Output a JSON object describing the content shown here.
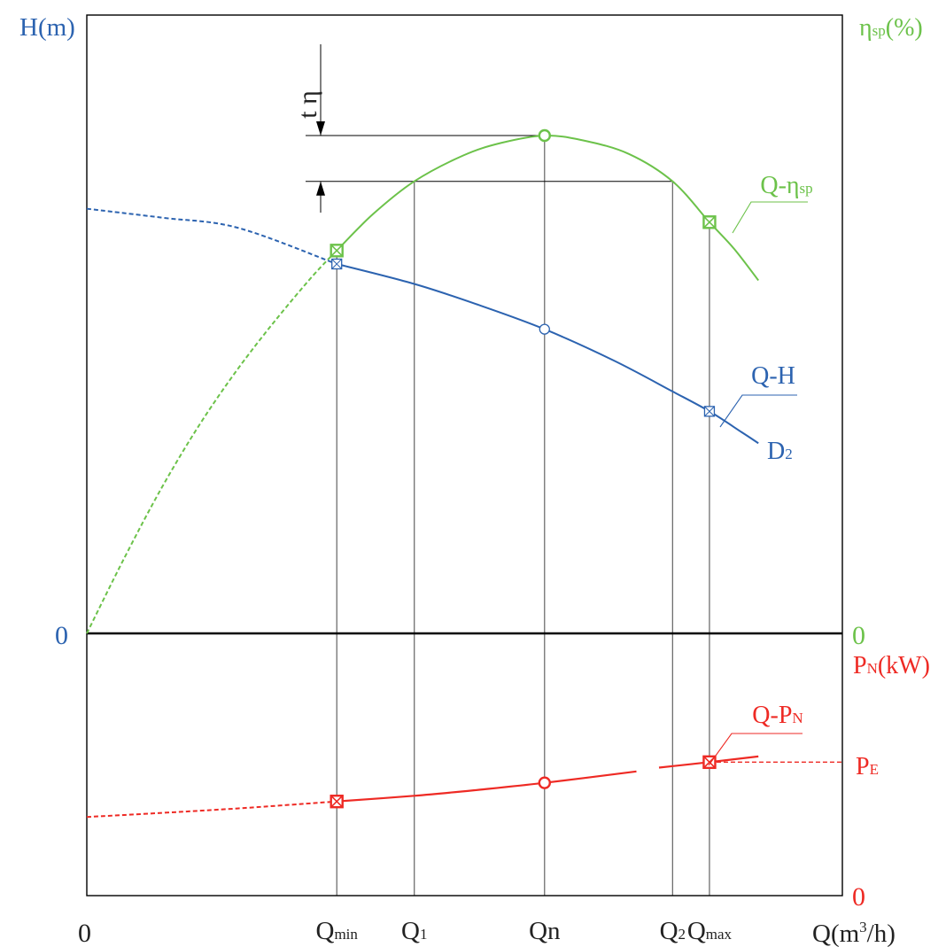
{
  "chart_data": {
    "type": "line",
    "colors": {
      "head": "#2c63b0",
      "efficiency": "#6cc24a",
      "power": "#ee2a24",
      "axis": "#000000",
      "guide": "#555555"
    },
    "left_axis": {
      "label_main": "H(m)",
      "zero": "0"
    },
    "right_axis_eff": {
      "label_main": "η",
      "label_sub": "sp",
      "label_tail": "(%)",
      "zero": "0"
    },
    "right_axis_power": {
      "label_main": "P",
      "label_sub": "N",
      "label_tail": "(kW)",
      "zero": "0"
    },
    "x_axis": {
      "origin": "0",
      "label_main": "Q(m",
      "label_sup": "3",
      "label_tail": "/h)",
      "domain": [
        0,
        10
      ]
    },
    "ticks": [
      {
        "id": "qmin",
        "main": "Q",
        "sub": "min",
        "x": 3.32
      },
      {
        "id": "q1",
        "main": "Q",
        "sub": "1",
        "x": 4.35
      },
      {
        "id": "qn",
        "main": "Qn",
        "sub": "",
        "x": 6.08
      },
      {
        "id": "q2",
        "main": "Q",
        "sub": "2",
        "x": 7.78
      },
      {
        "id": "qmax",
        "main": "Q",
        "sub": "max",
        "x": 8.27
      }
    ],
    "tolerance_label": "t η",
    "series": [
      {
        "key": "head",
        "name_main": "Q-H",
        "name2_main": "D",
        "name2_sub": "2",
        "y_domain": [
          0,
          100
        ],
        "dashed": [
          [
            0,
            85.3
          ],
          [
            1,
            83.5
          ],
          [
            2,
            81.5
          ],
          [
            3.32,
            74.2
          ]
        ],
        "solid": [
          [
            3.32,
            74.2
          ],
          [
            4.35,
            70.2
          ],
          [
            5.2,
            66.0
          ],
          [
            6.08,
            61.1
          ],
          [
            7.0,
            54.8
          ],
          [
            7.78,
            48.6
          ],
          [
            8.27,
            44.6
          ],
          [
            8.7,
            40.4
          ],
          [
            8.92,
            38.2
          ]
        ],
        "markers": [
          {
            "x": 3.32,
            "y": 74.2,
            "shape": "box-x"
          },
          {
            "x": 6.08,
            "y": 61.1,
            "shape": "circle"
          },
          {
            "x": 8.27,
            "y": 44.6,
            "shape": "box-x"
          }
        ]
      },
      {
        "key": "efficiency",
        "name_main": "Q-η",
        "name_sub": "sp",
        "y_domain": [
          0,
          100
        ],
        "dashed": [
          [
            0,
            0
          ],
          [
            0.5,
            15.2
          ],
          [
            1,
            29.4
          ],
          [
            1.5,
            42.0
          ],
          [
            2,
            53.0
          ],
          [
            2.5,
            62.8
          ],
          [
            3.0,
            71.8
          ],
          [
            3.32,
            76.9
          ]
        ],
        "solid": [
          [
            3.32,
            76.9
          ],
          [
            3.8,
            84.2
          ],
          [
            4.35,
            90.8
          ],
          [
            5.0,
            96.0
          ],
          [
            5.5,
            98.5
          ],
          [
            6.08,
            100
          ],
          [
            6.6,
            99.0
          ],
          [
            7.2,
            96.3
          ],
          [
            7.78,
            90.8
          ],
          [
            8.27,
            82.6
          ],
          [
            8.6,
            77.2
          ],
          [
            8.92,
            70.9
          ]
        ],
        "markers": [
          {
            "x": 3.32,
            "y": 76.9,
            "shape": "box-x"
          },
          {
            "x": 6.08,
            "y": 100,
            "shape": "circle"
          },
          {
            "x": 8.27,
            "y": 82.6,
            "shape": "box-x"
          }
        ]
      },
      {
        "key": "power",
        "name_main": "Q-P",
        "name_sub": "N",
        "y_domain": [
          0,
          100
        ],
        "dashed": [
          [
            0,
            30.4
          ],
          [
            1,
            32.0
          ],
          [
            2,
            33.7
          ],
          [
            3.32,
            36.4
          ]
        ],
        "solid_a": [
          [
            3.32,
            36.4
          ],
          [
            4.35,
            38.6
          ],
          [
            5.2,
            40.9
          ],
          [
            6.08,
            43.6
          ],
          [
            7.3,
            48.0
          ]
        ],
        "solid_b": [
          [
            7.6,
            49.5
          ],
          [
            8.27,
            51.6
          ],
          [
            8.92,
            53.8
          ]
        ],
        "markers": [
          {
            "x": 3.32,
            "y": 36.4,
            "shape": "box-x"
          },
          {
            "x": 6.08,
            "y": 43.6,
            "shape": "circle"
          },
          {
            "x": 8.27,
            "y": 51.6,
            "shape": "box-x"
          }
        ],
        "limit": {
          "main": "P",
          "sub": "E",
          "y": 51.6,
          "x_start": 8.27
        }
      }
    ]
  }
}
